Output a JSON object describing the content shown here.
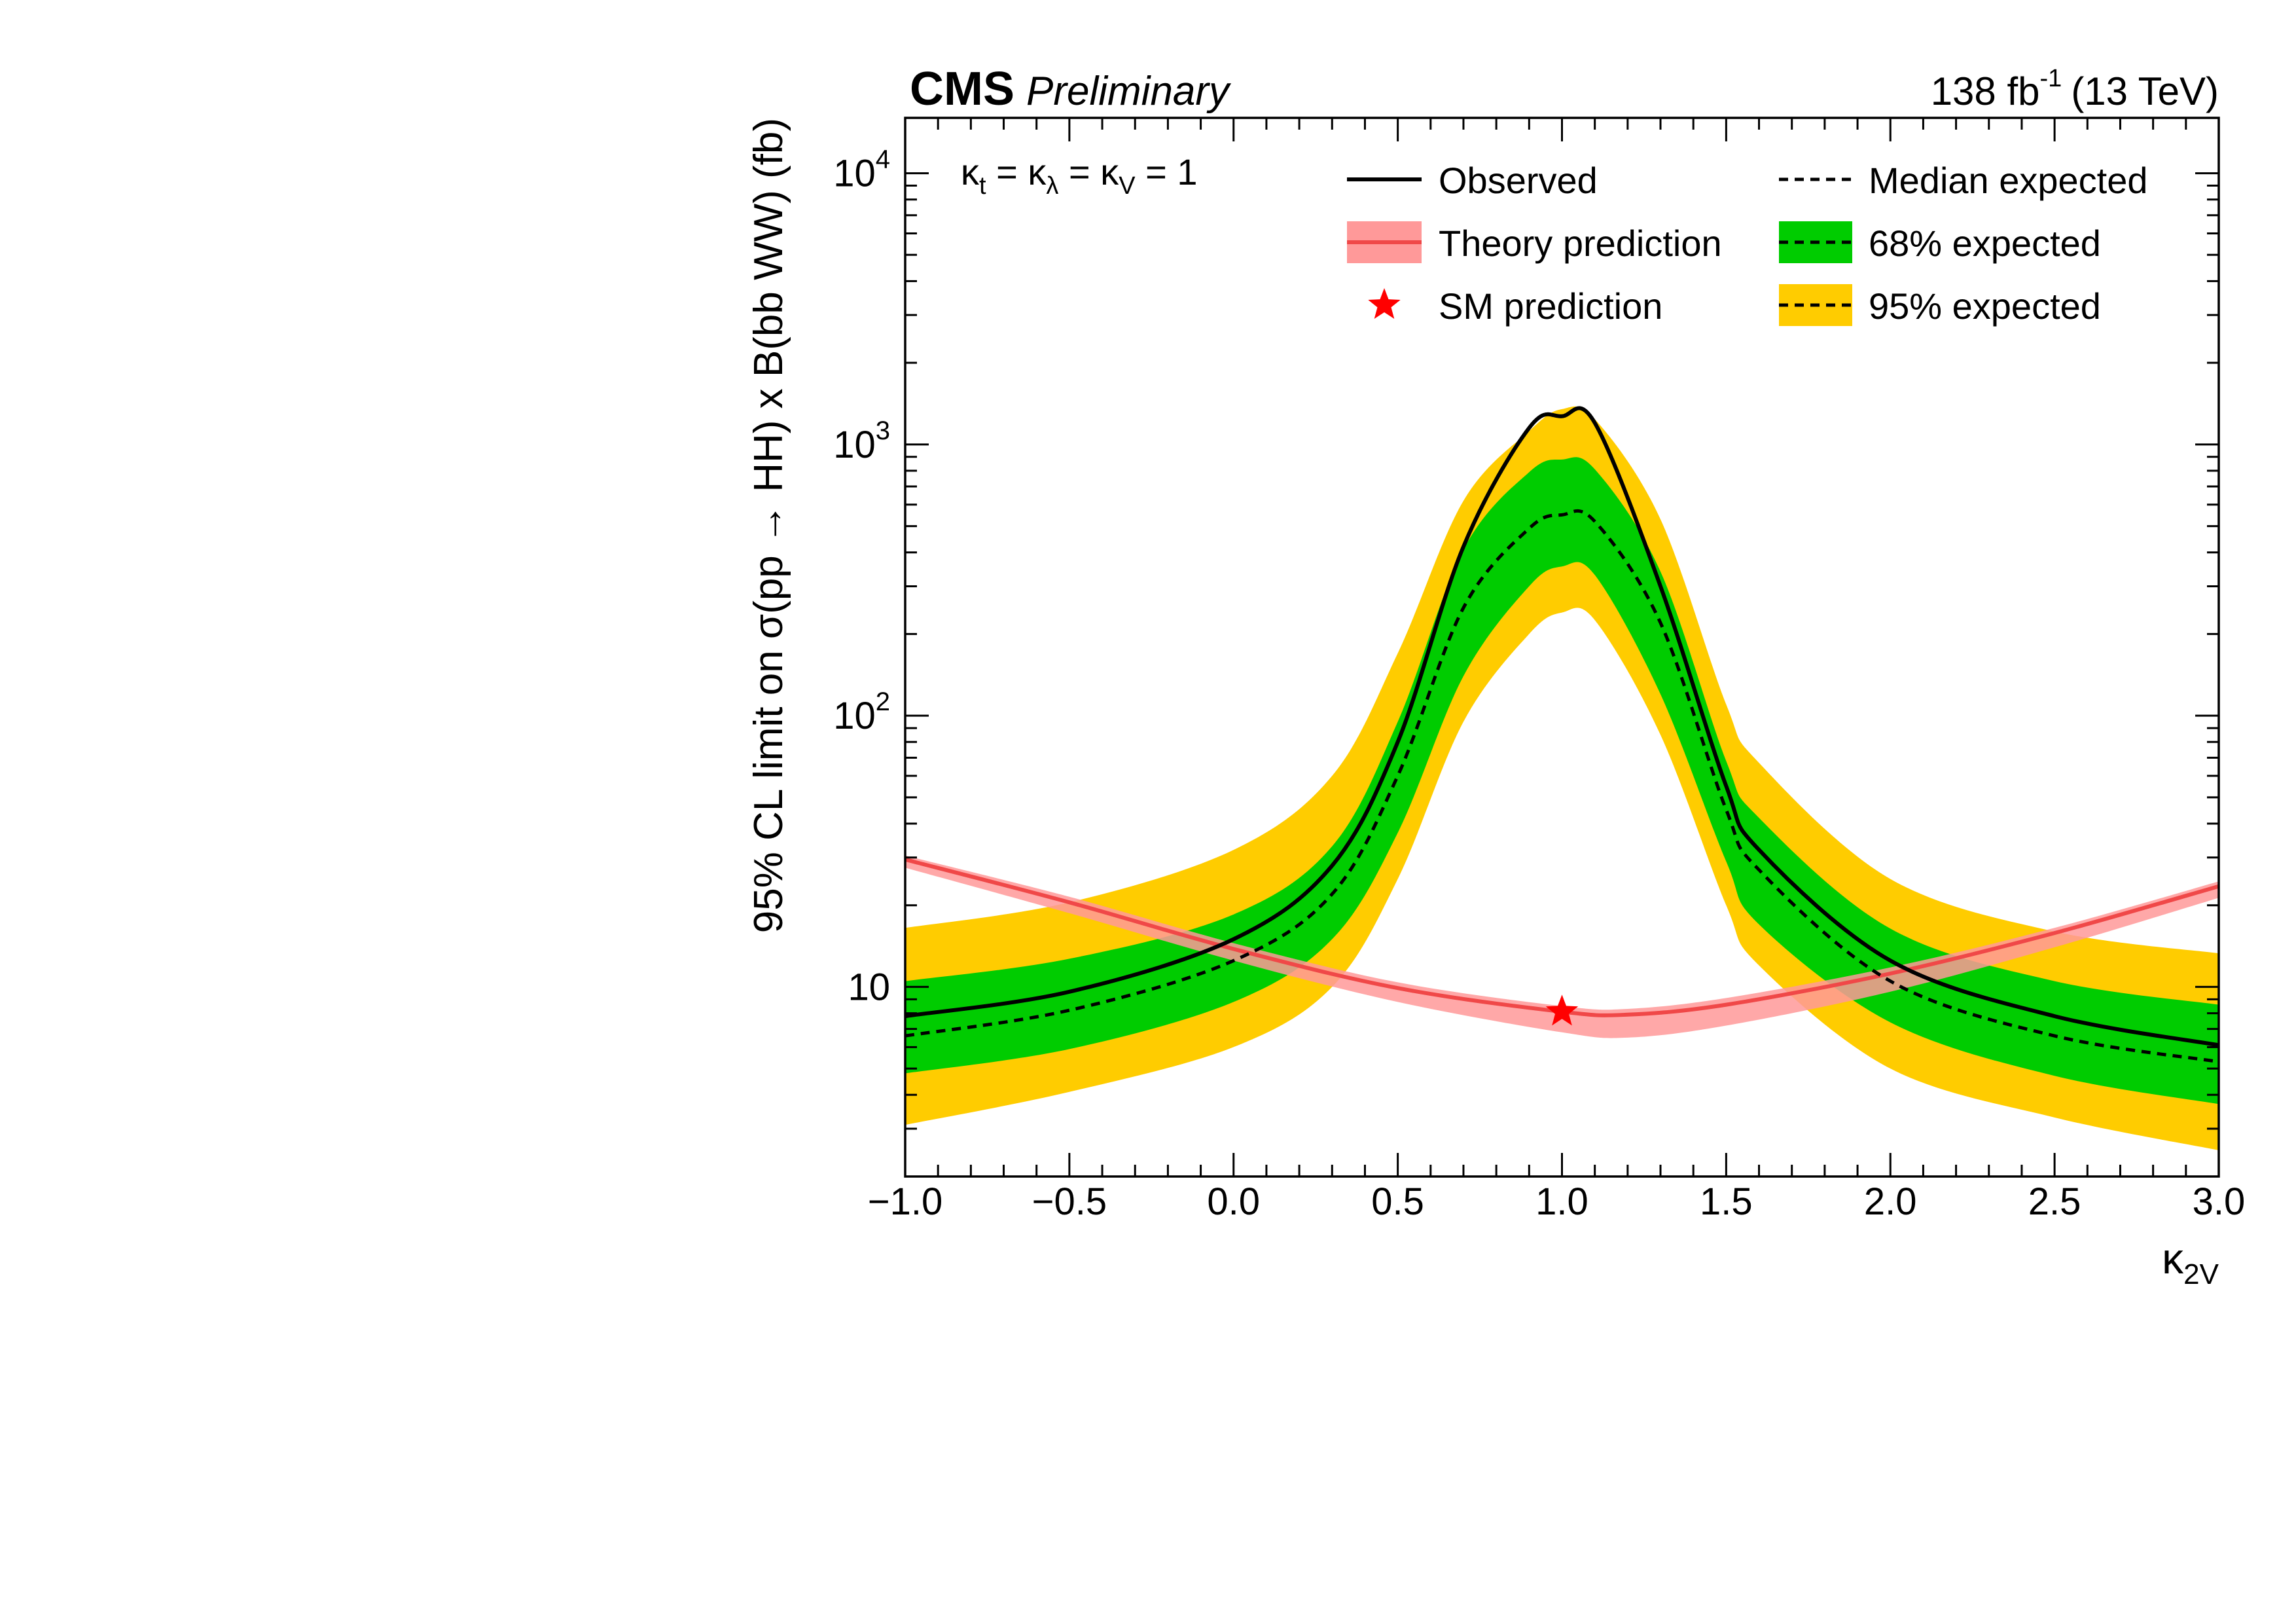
{
  "header": {
    "experiment": "CMS",
    "status": "Preliminary",
    "lumi_value": "138 fb",
    "lumi_exp": "-1",
    "energy": "(13 TeV)"
  },
  "annotation": {
    "parts": [
      "κ",
      "t",
      " = κ",
      "λ",
      " = κ",
      "V",
      " = 1"
    ]
  },
  "axes": {
    "ylabel": "95% CL limit on σ(pp → HH) x B(bb WW) (fb)",
    "xlabel_main": "κ",
    "xlabel_sub": "2V",
    "x_ticks": [
      "−1.0",
      "−0.5",
      "0.0",
      "0.5",
      "1.0",
      "1.5",
      "2.0",
      "2.5",
      "3.0"
    ],
    "y_ticks": [
      {
        "base": "10",
        "exp": "4",
        "value": 10000
      },
      {
        "base": "10",
        "exp": "3",
        "value": 1000
      },
      {
        "base": "10",
        "exp": "2",
        "value": 100
      },
      {
        "base": "10",
        "exp": "",
        "value": 10
      }
    ]
  },
  "legend": {
    "observed": "Observed",
    "median": "Median expected",
    "theory": "Theory prediction",
    "band68": "68% expected",
    "sm": "SM prediction",
    "band95": "95% expected"
  },
  "colors": {
    "observed": "#000000",
    "band68": "#00cc00",
    "band95": "#ffcc00",
    "theory_line": "#f04848",
    "theory_band": "#ff9999",
    "sm_star": "#ff0000"
  },
  "chart_data": {
    "type": "line",
    "x_scale": "linear",
    "y_scale": "log",
    "xlim": [
      -1.0,
      3.0
    ],
    "ylim": [
      2,
      16000
    ],
    "x": [
      -1.0,
      -0.5,
      0.0,
      0.3,
      0.5,
      0.7,
      0.9,
      1.0,
      1.1,
      1.3,
      1.5,
      1.6,
      2.0,
      2.5,
      3.0
    ],
    "series": [
      {
        "name": "Observed",
        "values": [
          7.8,
          9.6,
          15,
          28,
          80,
          420,
          1150,
          1270,
          1200,
          300,
          55,
          32,
          12.5,
          7.8,
          6.1
        ]
      },
      {
        "name": "Median expected",
        "values": [
          6.6,
          8.2,
          12.5,
          22,
          60,
          250,
          490,
          550,
          520,
          220,
          45,
          27,
          10.5,
          6.6,
          5.3
        ]
      },
      {
        "name": "68% expected",
        "low": [
          4.8,
          5.9,
          8.8,
          15,
          37,
          140,
          300,
          355,
          330,
          120,
          29,
          17,
          7.4,
          4.7,
          3.7
        ],
        "high": [
          10.5,
          12.7,
          18.5,
          33,
          95,
          410,
          790,
          880,
          810,
          340,
          68,
          42,
          16.4,
          10.5,
          8.6
        ]
      },
      {
        "name": "95% expected",
        "low": [
          3.1,
          4.1,
          6.0,
          10,
          25,
          95,
          200,
          240,
          225,
          85,
          20,
          12,
          5.0,
          3.3,
          2.5
        ],
        "high": [
          16.5,
          20.5,
          32,
          60,
          170,
          620,
          1120,
          1350,
          1240,
          530,
          110,
          67,
          25,
          16,
          13.3
        ]
      },
      {
        "name": "Theory prediction",
        "x": [
          -1.0,
          -0.5,
          0.0,
          0.5,
          1.0,
          1.2,
          1.5,
          2.0,
          2.5,
          3.0
        ],
        "values": [
          29.5,
          20.5,
          13.8,
          9.9,
          8.1,
          7.9,
          8.6,
          11.2,
          15.8,
          23.5
        ],
        "low": [
          27.5,
          18.7,
          12.5,
          8.8,
          6.8,
          6.5,
          7.2,
          9.6,
          14.0,
          21.3
        ],
        "high": [
          30.5,
          21.5,
          14.5,
          10.4,
          8.5,
          8.3,
          9.1,
          11.8,
          16.5,
          24.5
        ]
      },
      {
        "name": "SM prediction",
        "x": [
          1.0
        ],
        "values": [
          8.1
        ]
      }
    ]
  }
}
